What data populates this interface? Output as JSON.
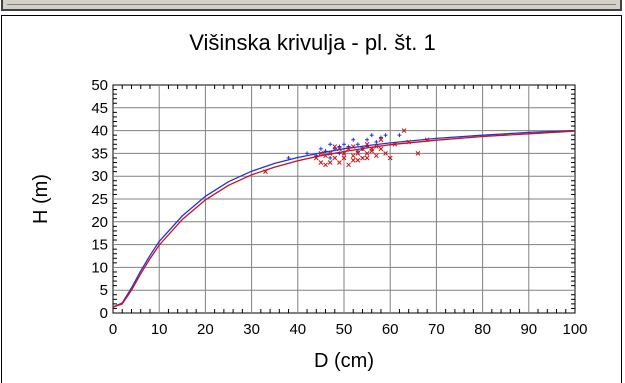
{
  "chart_data": {
    "type": "scatter",
    "title": "Višinska krivulja - pl. št. 1",
    "xlabel": "D (cm)",
    "ylabel": "H (m)",
    "xlim": [
      0,
      100
    ],
    "ylim": [
      0,
      50
    ],
    "xticks": [
      0,
      10,
      20,
      30,
      40,
      50,
      60,
      70,
      80,
      90,
      100
    ],
    "yticks": [
      0,
      5,
      10,
      15,
      20,
      25,
      30,
      35,
      40,
      45,
      50
    ],
    "grid": true,
    "colors": {
      "blue": "#2233dd",
      "red": "#cc1111"
    },
    "series": [
      {
        "kind": "line",
        "color": "#2233dd",
        "points": [
          [
            0,
            1.3
          ],
          [
            2,
            2.2
          ],
          [
            4,
            5.5
          ],
          [
            6,
            9.2
          ],
          [
            8,
            12.6
          ],
          [
            10,
            15.7
          ],
          [
            15,
            21.3
          ],
          [
            20,
            25.6
          ],
          [
            25,
            28.8
          ],
          [
            30,
            31.1
          ],
          [
            35,
            32.8
          ],
          [
            40,
            34.1
          ],
          [
            45,
            35.1
          ],
          [
            50,
            36.0
          ],
          [
            55,
            36.7
          ],
          [
            60,
            37.3
          ],
          [
            70,
            38.3
          ],
          [
            80,
            39.0
          ],
          [
            90,
            39.6
          ],
          [
            100,
            40.0
          ]
        ]
      },
      {
        "kind": "line",
        "color": "#cc1111",
        "points": [
          [
            0,
            1.3
          ],
          [
            2,
            2.0
          ],
          [
            4,
            5.0
          ],
          [
            6,
            8.6
          ],
          [
            8,
            11.9
          ],
          [
            10,
            14.9
          ],
          [
            15,
            20.5
          ],
          [
            20,
            24.8
          ],
          [
            25,
            28.0
          ],
          [
            30,
            30.3
          ],
          [
            35,
            32.0
          ],
          [
            40,
            33.4
          ],
          [
            45,
            34.5
          ],
          [
            50,
            35.4
          ],
          [
            55,
            36.2
          ],
          [
            60,
            36.9
          ],
          [
            70,
            37.9
          ],
          [
            80,
            38.7
          ],
          [
            90,
            39.3
          ],
          [
            100,
            39.9
          ]
        ]
      },
      {
        "kind": "points",
        "marker": "plus",
        "color": "#2233dd",
        "points": [
          [
            38,
            34
          ],
          [
            42,
            35
          ],
          [
            44,
            34.5
          ],
          [
            45,
            36
          ],
          [
            46,
            35.5
          ],
          [
            47,
            37
          ],
          [
            48,
            36
          ],
          [
            49,
            35
          ],
          [
            50,
            37
          ],
          [
            51,
            36.5
          ],
          [
            52,
            38
          ],
          [
            53,
            37
          ],
          [
            54,
            36
          ],
          [
            55,
            38
          ],
          [
            56,
            39
          ],
          [
            57,
            37.5
          ],
          [
            58,
            38.5
          ],
          [
            59,
            39
          ],
          [
            47,
            34
          ],
          [
            49,
            36.5
          ],
          [
            53,
            35.5
          ],
          [
            55,
            36.5
          ],
          [
            62,
            39
          ]
        ]
      },
      {
        "kind": "points",
        "marker": "x",
        "color": "#cc1111",
        "points": [
          [
            33,
            31
          ],
          [
            44,
            34
          ],
          [
            45,
            33
          ],
          [
            46,
            32.5
          ],
          [
            46,
            34.5
          ],
          [
            47,
            35
          ],
          [
            47,
            33
          ],
          [
            48,
            34
          ],
          [
            49,
            36
          ],
          [
            49,
            33
          ],
          [
            50,
            35
          ],
          [
            50,
            34
          ],
          [
            51,
            36
          ],
          [
            51,
            32.5
          ],
          [
            52,
            34.5
          ],
          [
            52,
            36.5
          ],
          [
            53,
            35
          ],
          [
            53,
            33.5
          ],
          [
            54,
            36
          ],
          [
            54,
            34
          ],
          [
            55,
            35
          ],
          [
            55,
            37
          ],
          [
            56,
            35.5
          ],
          [
            56,
            36
          ],
          [
            57,
            34.5
          ],
          [
            57,
            36.5
          ],
          [
            58,
            36
          ],
          [
            58,
            38
          ],
          [
            59,
            35
          ],
          [
            60,
            34
          ],
          [
            61,
            37
          ],
          [
            63,
            40
          ],
          [
            64,
            37.5
          ],
          [
            66,
            35
          ],
          [
            68,
            38
          ],
          [
            55,
            34
          ],
          [
            52,
            33.5
          ],
          [
            48,
            36.5
          ],
          [
            45,
            35
          ]
        ]
      }
    ]
  }
}
